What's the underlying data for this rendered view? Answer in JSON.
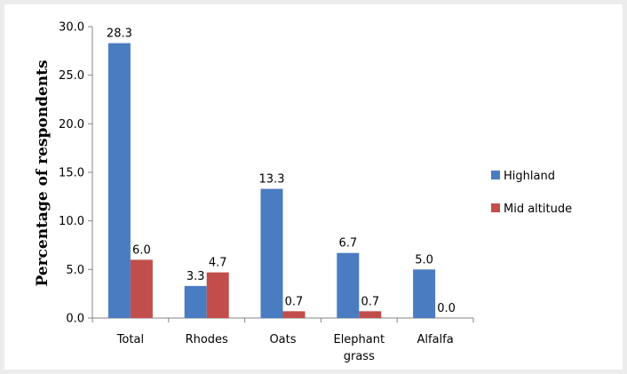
{
  "chart_data": {
    "type": "bar",
    "title": "",
    "xlabel": "",
    "ylabel": "Percentage of respondents",
    "ylim": [
      0,
      30
    ],
    "yticks": [
      "0.0",
      "5.0",
      "10.0",
      "15.0",
      "20.0",
      "25.0",
      "30.0"
    ],
    "categories": [
      [
        "Total"
      ],
      [
        "Rhodes"
      ],
      [
        "Oats"
      ],
      [
        "Elephant",
        "grass"
      ],
      [
        "Alfalfa"
      ]
    ],
    "series": [
      {
        "name": "Highland",
        "color": "#4a7cc2",
        "values": [
          28.3,
          3.3,
          13.3,
          6.7,
          5.0
        ],
        "labels": [
          "28.3",
          "3.3",
          "13.3",
          "6.7",
          "5.0"
        ]
      },
      {
        "name": "Mid altitude",
        "color": "#c24e4b",
        "values": [
          6.0,
          4.7,
          0.7,
          0.7,
          0.0
        ],
        "labels": [
          "6.0",
          "4.7",
          "0.7",
          "0.7",
          "0.0"
        ]
      }
    ],
    "grid": false,
    "legend": "right"
  }
}
